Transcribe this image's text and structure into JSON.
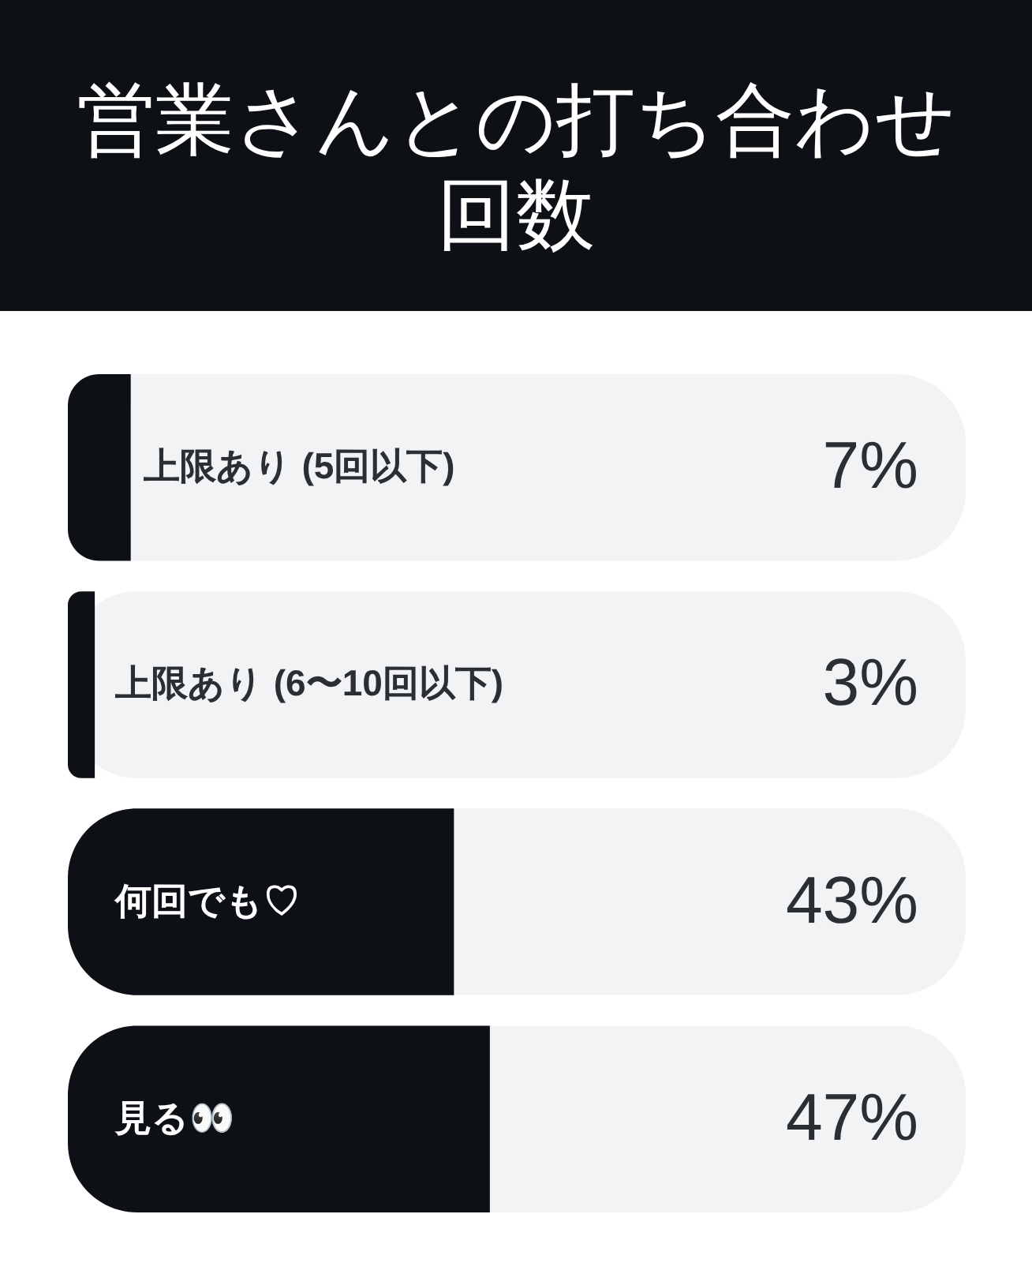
{
  "chart_data": {
    "type": "bar",
    "orientation": "horizontal",
    "title": "営業さんとの打ち合わせ回数",
    "categories": [
      "上限あり (5回以下)",
      "上限あり (6〜10回以下)",
      "何回でも♡",
      "見る👀"
    ],
    "values": [
      7,
      3,
      43,
      47
    ],
    "color": "#0d1014",
    "value_labels": [
      "7%",
      "3%",
      "43%",
      "47%"
    ],
    "xlim": [
      0,
      100
    ],
    "tick_labels": "y"
  }
}
